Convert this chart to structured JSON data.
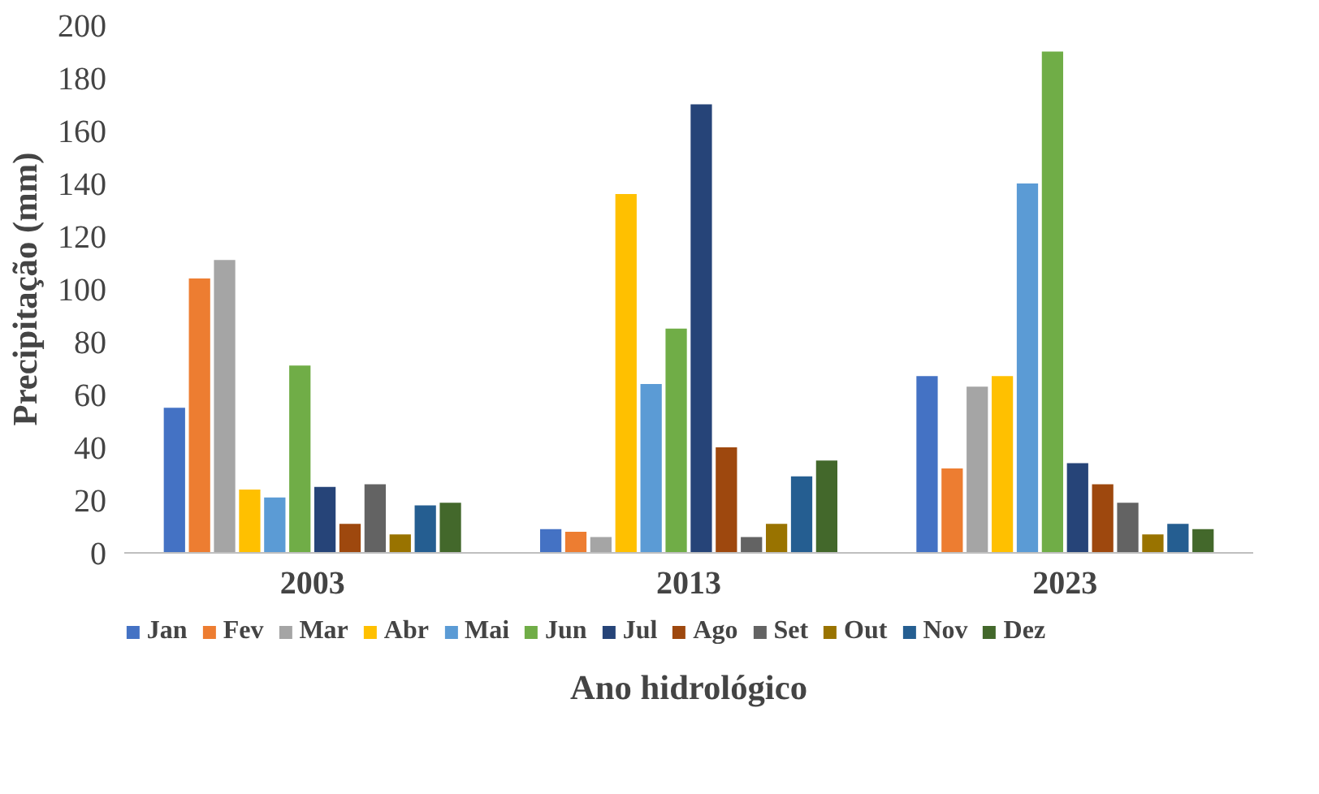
{
  "chart_data": {
    "type": "bar",
    "xlabel": "Ano hidrológico",
    "ylabel": "Precipitação (mm)",
    "categories": [
      "2003",
      "2013",
      "2023"
    ],
    "series": [
      {
        "name": "Jan",
        "color": "#4472c4",
        "values": [
          55,
          9,
          67
        ]
      },
      {
        "name": "Fev",
        "color": "#ed7d31",
        "values": [
          104,
          8,
          32
        ]
      },
      {
        "name": "Mar",
        "color": "#a5a5a5",
        "values": [
          111,
          6,
          63
        ]
      },
      {
        "name": "Abr",
        "color": "#ffc000",
        "values": [
          24,
          136,
          67
        ]
      },
      {
        "name": "Mai",
        "color": "#5b9bd5",
        "values": [
          21,
          64,
          140
        ]
      },
      {
        "name": "Jun",
        "color": "#70ad47",
        "values": [
          71,
          85,
          190
        ]
      },
      {
        "name": "Jul",
        "color": "#264478",
        "values": [
          25,
          170,
          34
        ]
      },
      {
        "name": "Ago",
        "color": "#9e480e",
        "values": [
          11,
          40,
          26
        ]
      },
      {
        "name": "Set",
        "color": "#636363",
        "values": [
          26,
          6,
          19
        ]
      },
      {
        "name": "Out",
        "color": "#997300",
        "values": [
          7,
          11,
          7
        ]
      },
      {
        "name": "Nov",
        "color": "#255e91",
        "values": [
          18,
          29,
          11
        ]
      },
      {
        "name": "Dez",
        "color": "#43682b",
        "values": [
          19,
          35,
          9
        ]
      }
    ],
    "ylim": [
      0,
      200
    ],
    "yticks": [
      0,
      20,
      40,
      60,
      80,
      100,
      120,
      140,
      160,
      180,
      200
    ],
    "grid": false,
    "legend": "bottom"
  }
}
